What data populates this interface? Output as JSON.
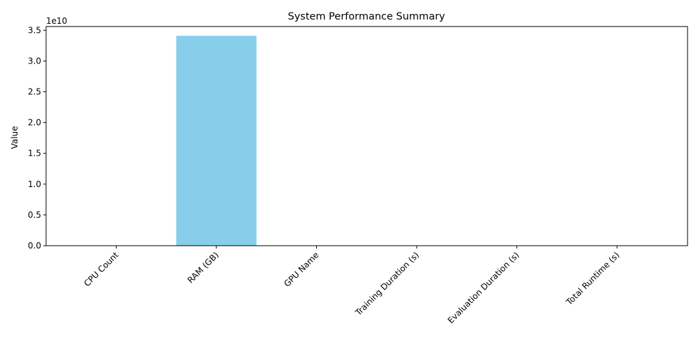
{
  "chart_data": {
    "type": "bar",
    "title": "System Performance Summary",
    "xlabel": "",
    "ylabel": "Value",
    "categories": [
      "CPU Count",
      "RAM (GB)",
      "GPU Name",
      "Training Duration (s)",
      "Evaluation Duration (s)",
      "Total Runtime (s)"
    ],
    "values": [
      0,
      34100000000,
      0,
      0,
      0,
      0
    ],
    "ylim": [
      0,
      35600000000
    ],
    "yticks": [
      0,
      5000000000,
      10000000000,
      15000000000,
      20000000000,
      25000000000,
      30000000000,
      35000000000
    ],
    "ytick_labels": [
      "0.0",
      "0.5",
      "1.0",
      "1.5",
      "2.0",
      "2.5",
      "3.0",
      "3.5"
    ],
    "y_scale_label": "1e10",
    "bar_color": "#87ceeb",
    "grid": false,
    "legend": "none"
  }
}
